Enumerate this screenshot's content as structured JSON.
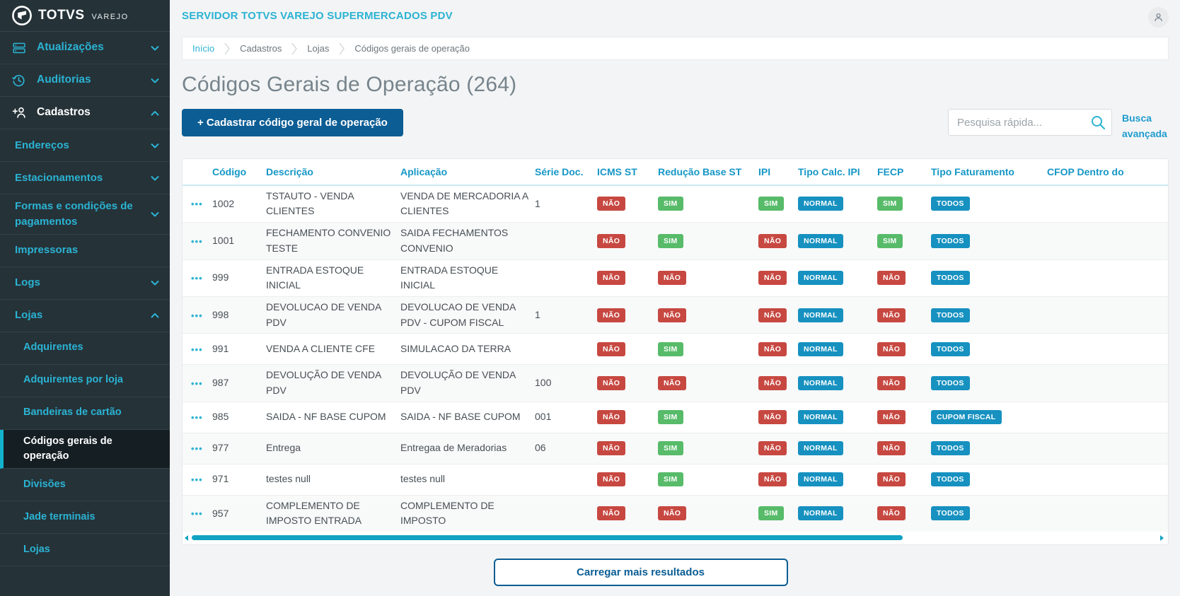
{
  "app": {
    "brand": "TOTVS",
    "brand_suffix": "VAREJO",
    "server_title": "SERVIDOR TOTVS VAREJO SUPERMERCADOS PDV"
  },
  "colors": {
    "accent": "#2bb3d3",
    "primary": "#0b5d94",
    "scrollbar": "#12a3c2",
    "badge_red": "#c74841",
    "badge_green": "#57bb69",
    "badge_blue": "#1691c0"
  },
  "sidebar": {
    "items": [
      {
        "label": "Atualizações",
        "icon": "updates-icon",
        "chevron": "down",
        "level": 1
      },
      {
        "label": "Auditorias",
        "icon": "history-icon",
        "chevron": "down",
        "level": 1
      },
      {
        "label": "Cadastros",
        "icon": "person-add-icon",
        "chevron": "up",
        "level": 1,
        "expanded": true
      },
      {
        "label": "Endereços",
        "chevron": "down",
        "level": 2
      },
      {
        "label": "Estacionamentos",
        "chevron": "down",
        "level": 2
      },
      {
        "label": "Formas e condições de pagamentos",
        "chevron": "down",
        "level": 2
      },
      {
        "label": "Impressoras",
        "level": 2
      },
      {
        "label": "Logs",
        "chevron": "down",
        "level": 2
      },
      {
        "label": "Lojas",
        "chevron": "up",
        "level": 2,
        "expanded": true
      },
      {
        "label": "Adquirentes",
        "level": 3
      },
      {
        "label": "Adquirentes por loja",
        "level": 3
      },
      {
        "label": "Bandeiras de cartão",
        "level": 3
      },
      {
        "label": "Códigos gerais de operação",
        "level": 3,
        "active": true
      },
      {
        "label": "Divisões",
        "level": 3
      },
      {
        "label": "Jade terminais",
        "level": 3
      },
      {
        "label": "Lojas",
        "level": 3
      }
    ]
  },
  "breadcrumb": [
    "Início",
    "Cadastros",
    "Lojas",
    "Códigos gerais de operação"
  ],
  "page": {
    "title": "Códigos Gerais de Operação (264)"
  },
  "toolbar": {
    "create_button": "+ Cadastrar código geral de operação",
    "search_placeholder": "Pesquisa rápida...",
    "advanced_search": "Busca avançada"
  },
  "table": {
    "columns": [
      "",
      "Código",
      "Descrição",
      "Aplicação",
      "Série Doc.",
      "ICMS ST",
      "Redução Base ST",
      "IPI",
      "Tipo Calc. IPI",
      "FECP",
      "Tipo Faturamento",
      "CFOP Dentro do"
    ],
    "badge_fields": [
      "icms_st",
      "reducao_base_st",
      "ipi",
      "tipo_calc_ipi",
      "fecp",
      "tipo_faturamento"
    ],
    "badge_colors": {
      "NÃO": "badge_red",
      "SIM": "badge_green",
      "NORMAL": "badge_blue",
      "TODOS": "badge_blue",
      "CUPOM FISCAL": "badge_blue"
    },
    "rows": [
      {
        "codigo": "1002",
        "descricao": "TSTAUTO - VENDA CLIENTES",
        "aplicacao": "VENDA DE MERCADORIA A CLIENTES",
        "serie": "1",
        "icms_st": "NÃO",
        "reducao_base_st": "SIM",
        "ipi": "SIM",
        "tipo_calc_ipi": "NORMAL",
        "fecp": "SIM",
        "tipo_faturamento": "TODOS"
      },
      {
        "codigo": "1001",
        "descricao": "FECHAMENTO CONVENIO TESTE",
        "aplicacao": "SAIDA FECHAMENTOS CONVENIO",
        "serie": "",
        "icms_st": "NÃO",
        "reducao_base_st": "SIM",
        "ipi": "NÃO",
        "tipo_calc_ipi": "NORMAL",
        "fecp": "SIM",
        "tipo_faturamento": "TODOS"
      },
      {
        "codigo": "999",
        "descricao": "ENTRADA ESTOQUE INICIAL",
        "aplicacao": "ENTRADA ESTOQUE INICIAL",
        "serie": "",
        "icms_st": "NÃO",
        "reducao_base_st": "NÃO",
        "ipi": "NÃO",
        "tipo_calc_ipi": "NORMAL",
        "fecp": "NÃO",
        "tipo_faturamento": "TODOS"
      },
      {
        "codigo": "998",
        "descricao": "DEVOLUCAO DE VENDA PDV",
        "aplicacao": "DEVOLUCAO DE VENDA PDV - CUPOM FISCAL",
        "serie": "1",
        "icms_st": "NÃO",
        "reducao_base_st": "NÃO",
        "ipi": "NÃO",
        "tipo_calc_ipi": "NORMAL",
        "fecp": "NÃO",
        "tipo_faturamento": "TODOS"
      },
      {
        "codigo": "991",
        "descricao": "VENDA A CLIENTE CFE",
        "aplicacao": "SIMULACAO DA TERRA",
        "serie": "",
        "icms_st": "NÃO",
        "reducao_base_st": "SIM",
        "ipi": "NÃO",
        "tipo_calc_ipi": "NORMAL",
        "fecp": "NÃO",
        "tipo_faturamento": "TODOS"
      },
      {
        "codigo": "987",
        "descricao": "DEVOLUÇÃO DE VENDA PDV",
        "aplicacao": "DEVOLUÇÃO DE VENDA PDV",
        "serie": "100",
        "icms_st": "NÃO",
        "reducao_base_st": "NÃO",
        "ipi": "NÃO",
        "tipo_calc_ipi": "NORMAL",
        "fecp": "NÃO",
        "tipo_faturamento": "TODOS"
      },
      {
        "codigo": "985",
        "descricao": "SAIDA - NF BASE CUPOM",
        "aplicacao": "SAIDA - NF BASE CUPOM",
        "serie": "001",
        "icms_st": "NÃO",
        "reducao_base_st": "SIM",
        "ipi": "NÃO",
        "tipo_calc_ipi": "NORMAL",
        "fecp": "NÃO",
        "tipo_faturamento": "CUPOM FISCAL"
      },
      {
        "codigo": "977",
        "descricao": "Entrega",
        "aplicacao": "Entregaa de Meradorias",
        "serie": "06",
        "icms_st": "NÃO",
        "reducao_base_st": "SIM",
        "ipi": "NÃO",
        "tipo_calc_ipi": "NORMAL",
        "fecp": "NÃO",
        "tipo_faturamento": "TODOS"
      },
      {
        "codigo": "971",
        "descricao": "testes null",
        "aplicacao": "testes null",
        "serie": "",
        "icms_st": "NÃO",
        "reducao_base_st": "SIM",
        "ipi": "NÃO",
        "tipo_calc_ipi": "NORMAL",
        "fecp": "NÃO",
        "tipo_faturamento": "TODOS"
      },
      {
        "codigo": "957",
        "descricao": "COMPLEMENTO DE IMPOSTO ENTRADA",
        "aplicacao": "COMPLEMENTO DE IMPOSTO",
        "serie": "",
        "icms_st": "NÃO",
        "reducao_base_st": "NÃO",
        "ipi": "SIM",
        "tipo_calc_ipi": "NORMAL",
        "fecp": "NÃO",
        "tipo_faturamento": "TODOS"
      }
    ]
  },
  "footer": {
    "load_more": "Carregar mais resultados"
  }
}
